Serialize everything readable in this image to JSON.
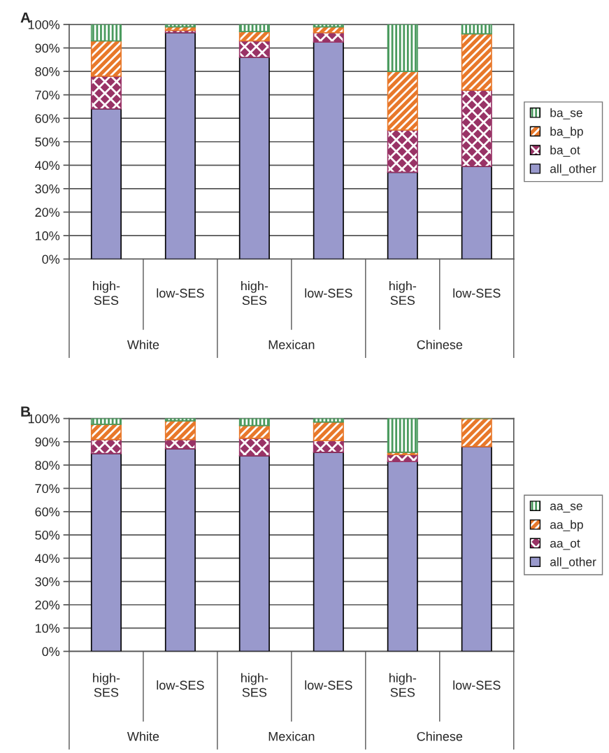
{
  "chart_data": [
    {
      "type": "bar",
      "title": "A",
      "stacked": true,
      "categories": [
        "high-\nSES",
        "low-SES",
        "high-\nSES",
        "low-SES",
        "high-\nSES",
        "low-SES"
      ],
      "annotations": [
        "White",
        "Mexican",
        "Chinese"
      ],
      "series": [
        {
          "name": "all_other",
          "color": "#9999cc",
          "values": [
            64,
            96.5,
            86,
            92.5,
            37,
            39.5
          ]
        },
        {
          "name": "ba_ot",
          "color": "#993366",
          "values": [
            14,
            1,
            7,
            4,
            18,
            32.5
          ]
        },
        {
          "name": "ba_bp",
          "color": "#e8782a",
          "values": [
            15,
            1.5,
            4,
            2.5,
            25,
            24
          ]
        },
        {
          "name": "ba_se",
          "color": "#4a9a5e",
          "values": [
            7,
            1,
            3,
            1,
            20,
            4
          ]
        }
      ],
      "ylim": [
        0,
        100
      ],
      "yticks": [
        {
          "value": 0,
          "label": "0%"
        },
        {
          "value": 10,
          "label": "10%"
        },
        {
          "value": 20,
          "label": "20%"
        },
        {
          "value": 30,
          "label": "30%"
        },
        {
          "value": 40,
          "label": "40%"
        },
        {
          "value": 50,
          "label": "50%"
        },
        {
          "value": 60,
          "label": "60%"
        },
        {
          "value": 70,
          "label": "70%"
        },
        {
          "value": 80,
          "label": "80%"
        },
        {
          "value": 90,
          "label": "90%"
        },
        {
          "value": 100,
          "label": "100%"
        }
      ],
      "grid": "y",
      "legend": "right"
    },
    {
      "type": "bar",
      "title": "B",
      "stacked": true,
      "categories": [
        "high-\nSES",
        "low-SES",
        "high-\nSES",
        "low-SES",
        "high-\nSES",
        "low-SES"
      ],
      "annotations": [
        "White",
        "Mexican",
        "Chinese"
      ],
      "series": [
        {
          "name": "all_other",
          "color": "#9999cc",
          "values": [
            85,
            87,
            84,
            85.5,
            81.5,
            88
          ]
        },
        {
          "name": "aa_ot",
          "color": "#993366",
          "values": [
            6,
            4,
            7.5,
            5,
            3,
            0
          ]
        },
        {
          "name": "aa_bp",
          "color": "#e8782a",
          "values": [
            6.5,
            8,
            5.5,
            8,
            1,
            12
          ]
        },
        {
          "name": "aa_se",
          "color": "#4a9a5e",
          "values": [
            2.5,
            1,
            3,
            1.5,
            14.5,
            0
          ]
        }
      ],
      "ylim": [
        0,
        100
      ],
      "yticks": [
        {
          "value": 0,
          "label": "0%"
        },
        {
          "value": 10,
          "label": "10%"
        },
        {
          "value": 20,
          "label": "20%"
        },
        {
          "value": 30,
          "label": "30%"
        },
        {
          "value": 40,
          "label": "40%"
        },
        {
          "value": 50,
          "label": "50%"
        },
        {
          "value": 60,
          "label": "60%"
        },
        {
          "value": 70,
          "label": "70%"
        },
        {
          "value": 80,
          "label": "80%"
        },
        {
          "value": 90,
          "label": "90%"
        },
        {
          "value": 100,
          "label": "100%"
        }
      ],
      "grid": "y",
      "legend": "right"
    }
  ]
}
